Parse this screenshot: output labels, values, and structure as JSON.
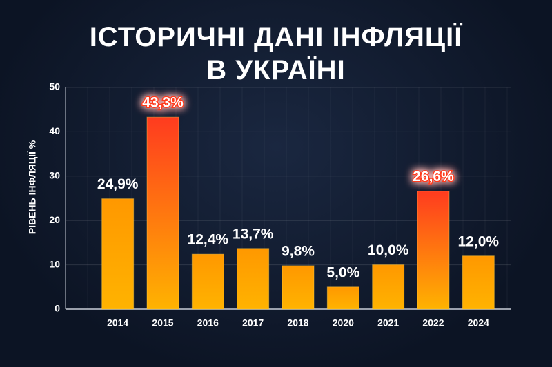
{
  "chart_data": {
    "type": "bar",
    "title": "ІСТОРИЧНІ ДАНІ ІНФЛЯЦІЇ\nВ УКРАЇНІ",
    "y_label": "РІВЕНЬ ІНФЛЯЦІЇ %",
    "categories": [
      "2014",
      "2015",
      "2016",
      "2017",
      "2018",
      "2020",
      "2021",
      "2022",
      "2024"
    ],
    "values": [
      24.9,
      43.3,
      12.4,
      13.7,
      9.8,
      5.0,
      10.0,
      26.6,
      12.0
    ],
    "value_labels": [
      "24,9%",
      "43,3%",
      "12,4%",
      "13,7%",
      "9,8%",
      "5,0%",
      "10,0%",
      "26,6%",
      "12,0%"
    ],
    "colors": [
      "#ffb300",
      "#ff3b1f",
      "#ffb300",
      "#ffb300",
      "#ffb300",
      "#ffb300",
      "#ffb300",
      "#ff3b1f",
      "#ffb300"
    ],
    "highlight_color": "#ff3b1f",
    "ylim": [
      0,
      50
    ],
    "yticks": [
      0,
      10,
      20,
      30,
      40,
      50
    ],
    "grid": true
  }
}
